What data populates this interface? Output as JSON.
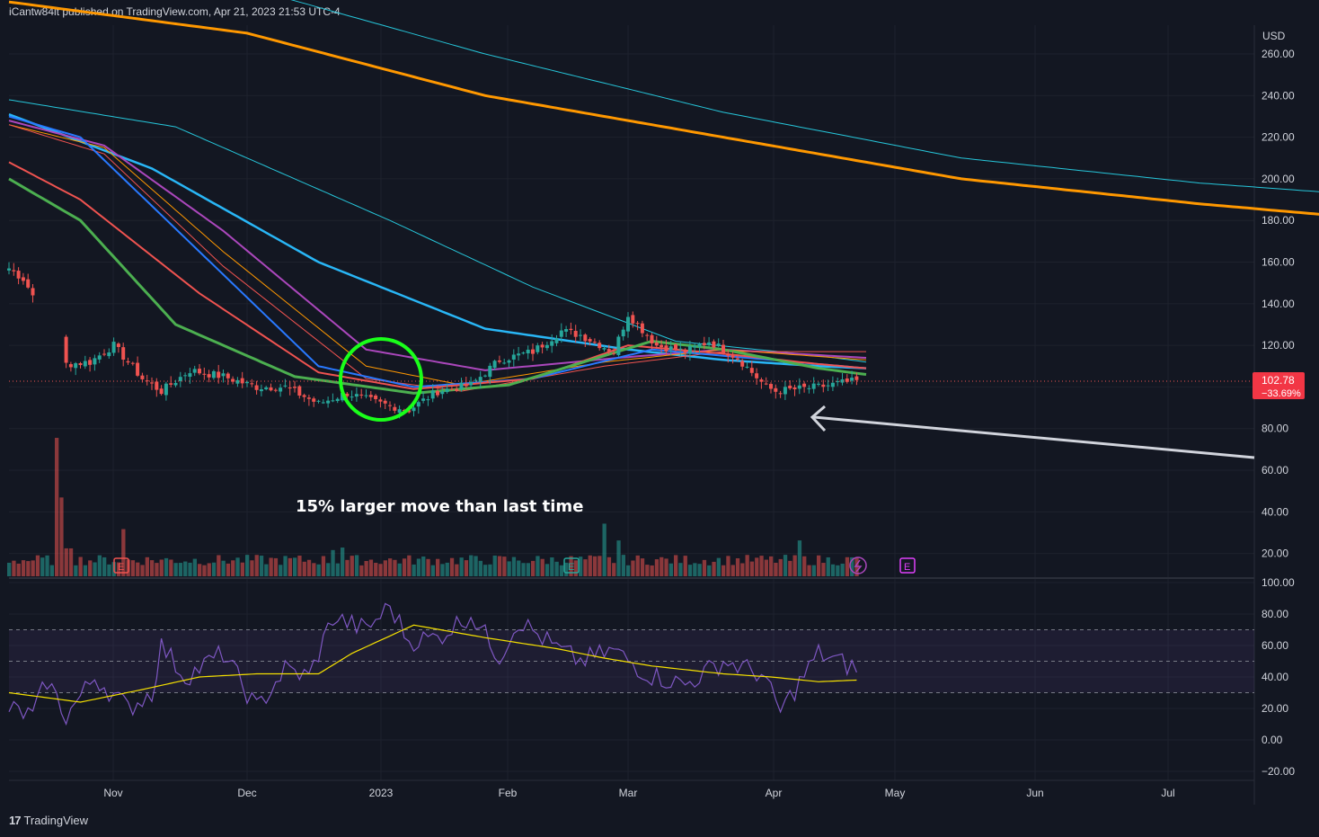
{
  "header": {
    "text": "iCantw84it published on TradingView.com, Apr 21, 2023 21:53 UTC-4"
  },
  "footer": {
    "logo_mark": "17",
    "brand": "TradingView"
  },
  "annotation": {
    "text": "15% larger move than last time"
  },
  "colors": {
    "background": "#131722",
    "grid": "#1e222d",
    "up": "#26a69a",
    "down": "#ef5350",
    "circle": "#1aff1a",
    "rsi": "#7e57c2",
    "rsi_ma": "#f5e000"
  },
  "chart_data": [
    {
      "type": "candlestick",
      "currency": "USD",
      "ylim": [
        5,
        272
      ],
      "y_ticks": [
        "260.00",
        "240.00",
        "220.00",
        "200.00",
        "180.00",
        "160.00",
        "140.00",
        "120.00",
        "100.00",
        "80.00",
        "60.00",
        "40.00",
        "20.00"
      ],
      "y_tick_values": [
        260,
        240,
        220,
        200,
        180,
        160,
        140,
        120,
        100,
        80,
        60,
        40,
        20
      ],
      "x_tick_labels": [
        "Nov",
        "Dec",
        "2023",
        "Feb",
        "Mar",
        "Apr",
        "May",
        "Jun",
        "Jul"
      ],
      "last_price": {
        "value": "102.78",
        "change": "−33.69%"
      },
      "close_anchors": [
        [
          0,
          157
        ],
        [
          3,
          152
        ],
        [
          6,
          140
        ],
        [
          9,
          146
        ],
        [
          12,
          111
        ],
        [
          17,
          112
        ],
        [
          22,
          120
        ],
        [
          28,
          104
        ],
        [
          32,
          98
        ],
        [
          38,
          108
        ],
        [
          45,
          105
        ],
        [
          52,
          100
        ],
        [
          58,
          100
        ],
        [
          65,
          92
        ],
        [
          71,
          97
        ],
        [
          78,
          92
        ],
        [
          84,
          89
        ],
        [
          90,
          98
        ],
        [
          97,
          101
        ],
        [
          103,
          113
        ],
        [
          110,
          117
        ],
        [
          116,
          127
        ],
        [
          120,
          125
        ],
        [
          127,
          117
        ],
        [
          130,
          135
        ],
        [
          136,
          120
        ],
        [
          142,
          117
        ],
        [
          147,
          122
        ],
        [
          153,
          114
        ],
        [
          159,
          100
        ],
        [
          161,
          98
        ],
        [
          170,
          100
        ],
        [
          175,
          102
        ],
        [
          178,
          102.78
        ]
      ],
      "moving_averages": [
        {
          "color": "#ff9800",
          "width": 3,
          "points": [
            [
              0,
              285
            ],
            [
              50,
              270
            ],
            [
              100,
              240
            ],
            [
              150,
              220
            ],
            [
              200,
              200
            ],
            [
              250,
              188
            ],
            [
              280,
              182
            ]
          ]
        },
        {
          "color": "#26c6da",
          "width": 1,
          "points": [
            [
              0,
              305
            ],
            [
              50,
              292
            ],
            [
              100,
              260
            ],
            [
              150,
              232
            ],
            [
              200,
              210
            ],
            [
              250,
              198
            ],
            [
              280,
              193
            ]
          ]
        },
        {
          "color": "#26c6da",
          "width": 1,
          "points": [
            [
              0,
              238
            ],
            [
              35,
              225
            ],
            [
              80,
              180
            ],
            [
              110,
              148
            ],
            [
              140,
              122
            ],
            [
              170,
              115
            ],
            [
              180,
              112
            ]
          ]
        },
        {
          "color": "#29b6f6",
          "width": 2.5,
          "points": [
            [
              0,
              231
            ],
            [
              30,
              205
            ],
            [
              65,
              160
            ],
            [
              100,
              128
            ],
            [
              130,
              118
            ],
            [
              150,
              113
            ],
            [
              170,
              110
            ],
            [
              180,
              109
            ]
          ]
        },
        {
          "color": "#ab47bc",
          "width": 2,
          "points": [
            [
              0,
              228
            ],
            [
              20,
              216
            ],
            [
              45,
              175
            ],
            [
              75,
              118
            ],
            [
              100,
              108
            ],
            [
              128,
              114
            ],
            [
              150,
              118
            ],
            [
              165,
              116
            ],
            [
              180,
              114
            ]
          ]
        },
        {
          "color": "#ff9800",
          "width": 1,
          "points": [
            [
              0,
              226
            ],
            [
              20,
              215
            ],
            [
              45,
              165
            ],
            [
              75,
              110
            ],
            [
              95,
              101
            ],
            [
              125,
              112
            ],
            [
              150,
              118
            ],
            [
              180,
              113
            ]
          ]
        },
        {
          "color": "#ef5350",
          "width": 1,
          "points": [
            [
              0,
              226
            ],
            [
              20,
              212
            ],
            [
              45,
              158
            ],
            [
              75,
              104
            ],
            [
              95,
              98
            ],
            [
              125,
              110
            ],
            [
              150,
              117
            ],
            [
              180,
              117
            ]
          ]
        },
        {
          "color": "#2979ff",
          "width": 2,
          "points": [
            [
              0,
              230
            ],
            [
              15,
              220
            ],
            [
              40,
              165
            ],
            [
              65,
              110
            ],
            [
              85,
              100
            ],
            [
              110,
              104
            ],
            [
              135,
              118
            ],
            [
              165,
              112
            ],
            [
              180,
              109
            ]
          ]
        },
        {
          "color": "#ef5350",
          "width": 2,
          "points": [
            [
              0,
              208
            ],
            [
              15,
              190
            ],
            [
              40,
              145
            ],
            [
              65,
              107
            ],
            [
              85,
              99
            ],
            [
              110,
              104
            ],
            [
              130,
              120
            ],
            [
              150,
              116
            ],
            [
              170,
              111
            ],
            [
              180,
              109
            ]
          ]
        },
        {
          "color": "#4caf50",
          "width": 3,
          "points": [
            [
              0,
              200
            ],
            [
              15,
              180
            ],
            [
              35,
              130
            ],
            [
              60,
              105
            ],
            [
              85,
              97
            ],
            [
              105,
              101
            ],
            [
              125,
              115
            ],
            [
              135,
              122
            ],
            [
              150,
              118
            ],
            [
              170,
              109
            ],
            [
              180,
              106
            ]
          ]
        }
      ]
    },
    {
      "type": "bar",
      "name": "Volume",
      "volume_spikes": [
        [
          10,
          7
        ],
        [
          11,
          3.7
        ],
        [
          24,
          2.7
        ],
        [
          70,
          2
        ],
        [
          125,
          2.7
        ],
        [
          166,
          2.1
        ],
        [
          128,
          2.2
        ],
        [
          12,
          2.2
        ],
        [
          13,
          2.3
        ],
        [
          68,
          1.8
        ]
      ]
    },
    {
      "type": "line",
      "name": "RSI",
      "ylim": [
        -20,
        100
      ],
      "y_ticks": [
        "100.00",
        "80.00",
        "60.00",
        "40.00",
        "20.00",
        "0.00",
        "−20.00"
      ],
      "y_tick_values": [
        100,
        80,
        60,
        40,
        20,
        0,
        -20
      ],
      "bands": [
        70,
        50,
        30
      ],
      "rsi_anchors": [
        [
          0,
          20
        ],
        [
          5,
          15
        ],
        [
          8,
          38
        ],
        [
          12,
          15
        ],
        [
          18,
          40
        ],
        [
          25,
          20
        ],
        [
          30,
          30
        ],
        [
          32,
          60
        ],
        [
          37,
          40
        ],
        [
          45,
          55
        ],
        [
          52,
          20
        ],
        [
          58,
          45
        ],
        [
          63,
          40
        ],
        [
          68,
          78
        ],
        [
          75,
          70
        ],
        [
          80,
          85
        ],
        [
          84,
          63
        ],
        [
          90,
          65
        ],
        [
          97,
          80
        ],
        [
          103,
          53
        ],
        [
          107,
          76
        ],
        [
          115,
          58
        ],
        [
          120,
          50
        ],
        [
          127,
          57
        ],
        [
          134,
          42
        ],
        [
          142,
          35
        ],
        [
          150,
          50
        ],
        [
          158,
          42
        ],
        [
          162,
          18
        ],
        [
          170,
          55
        ],
        [
          178,
          45
        ]
      ],
      "rsi_ma_anchors": [
        [
          0,
          30
        ],
        [
          15,
          24
        ],
        [
          28,
          32
        ],
        [
          40,
          40
        ],
        [
          52,
          42
        ],
        [
          65,
          42
        ],
        [
          72,
          55
        ],
        [
          85,
          73
        ],
        [
          100,
          65
        ],
        [
          115,
          58
        ],
        [
          125,
          52
        ],
        [
          135,
          47
        ],
        [
          150,
          42
        ],
        [
          160,
          40
        ],
        [
          170,
          37
        ],
        [
          178,
          38
        ]
      ]
    }
  ],
  "markers": {
    "earnings_label": "E",
    "dividend_icon": "lightning-icon"
  }
}
